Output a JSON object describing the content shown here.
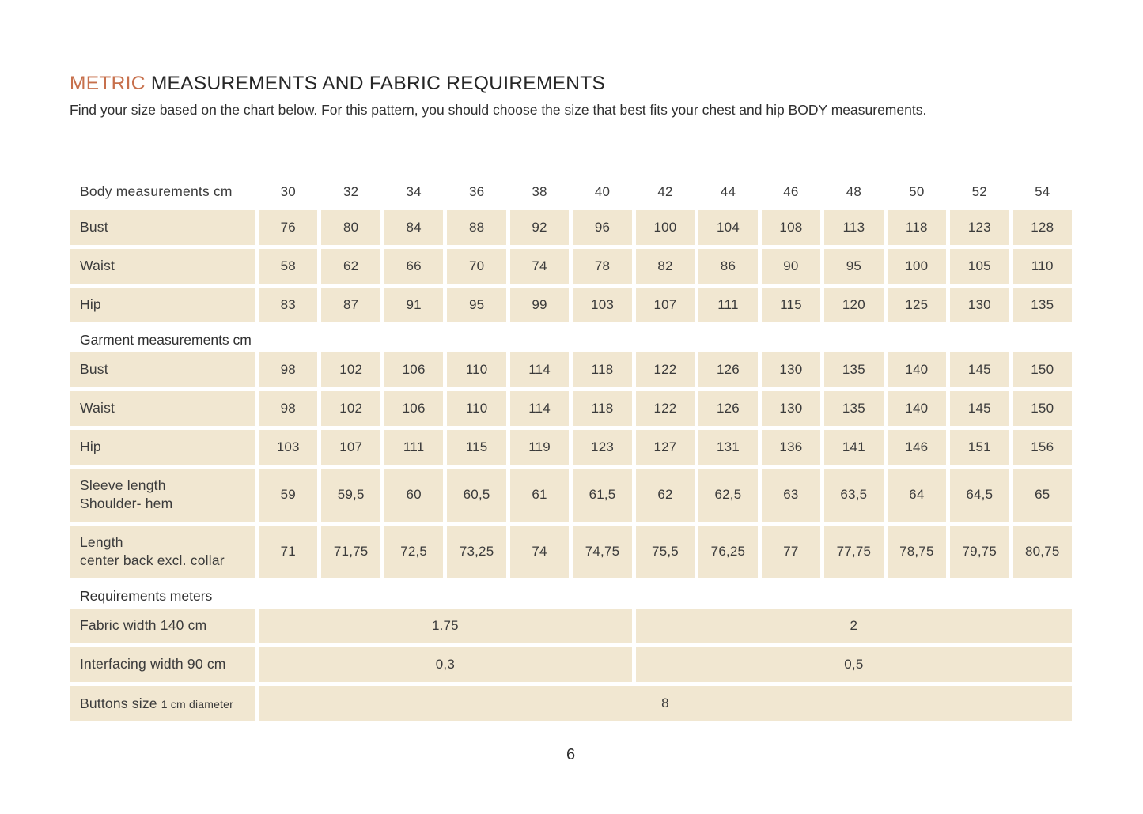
{
  "page": {
    "title_accent": "METRIC",
    "title_rest": "MEASUREMENTS AND FABRIC REQUIREMENTS",
    "subtitle": "Find your size based on the chart below. For this pattern, you should choose the size that best fits your chest and hip BODY measurements.",
    "page_number": "6"
  },
  "colors": {
    "accent_orange": "#c7704c",
    "cell_beige": "#f1e7d1",
    "text_dark": "#3b3b3b"
  },
  "size_chart": {
    "sizes_header_label": "Body measurements cm",
    "sizes": [
      "30",
      "32",
      "34",
      "36",
      "38",
      "40",
      "42",
      "44",
      "46",
      "48",
      "50",
      "52",
      "54"
    ],
    "body_rows": [
      {
        "label": "Bust",
        "values": [
          "76",
          "80",
          "84",
          "88",
          "92",
          "96",
          "100",
          "104",
          "108",
          "113",
          "118",
          "123",
          "128"
        ]
      },
      {
        "label": "Waist",
        "values": [
          "58",
          "62",
          "66",
          "70",
          "74",
          "78",
          "82",
          "86",
          "90",
          "95",
          "100",
          "105",
          "110"
        ]
      },
      {
        "label": "Hip",
        "values": [
          "83",
          "87",
          "91",
          "95",
          "99",
          "103",
          "107",
          "111",
          "115",
          "120",
          "125",
          "130",
          "135"
        ]
      }
    ],
    "garment_header": "Garment measurements cm",
    "garment_rows": [
      {
        "label": "Bust",
        "values": [
          "98",
          "102",
          "106",
          "110",
          "114",
          "118",
          "122",
          "126",
          "130",
          "135",
          "140",
          "145",
          "150"
        ]
      },
      {
        "label": "Waist",
        "values": [
          "98",
          "102",
          "106",
          "110",
          "114",
          "118",
          "122",
          "126",
          "130",
          "135",
          "140",
          "145",
          "150"
        ]
      },
      {
        "label": "Hip",
        "values": [
          "103",
          "107",
          "111",
          "115",
          "119",
          "123",
          "127",
          "131",
          "136",
          "141",
          "146",
          "151",
          "156"
        ]
      },
      {
        "label": "Sleeve length",
        "sublabel": "Shoulder- hem",
        "values": [
          "59",
          "59,5",
          "60",
          "60,5",
          "61",
          "61,5",
          "62",
          "62,5",
          "63",
          "63,5",
          "64",
          "64,5",
          "65"
        ]
      },
      {
        "label": "Length",
        "sublabel": "center back excl. collar",
        "values": [
          "71",
          "71,75",
          "72,5",
          "73,25",
          "74",
          "74,75",
          "75,5",
          "76,25",
          "77",
          "77,75",
          "78,75",
          "79,75",
          "80,75"
        ]
      }
    ],
    "requirements_header": "Requirements meters",
    "requirements_rows": [
      {
        "label": "Fabric width 140 cm",
        "value_left": "1.75",
        "value_right": "2"
      },
      {
        "label": "Interfacing width 90 cm",
        "value_left": "0,3",
        "value_right": "0,5"
      },
      {
        "label": "Buttons size",
        "label_small": "1 cm diameter",
        "value_full": "8"
      }
    ]
  }
}
